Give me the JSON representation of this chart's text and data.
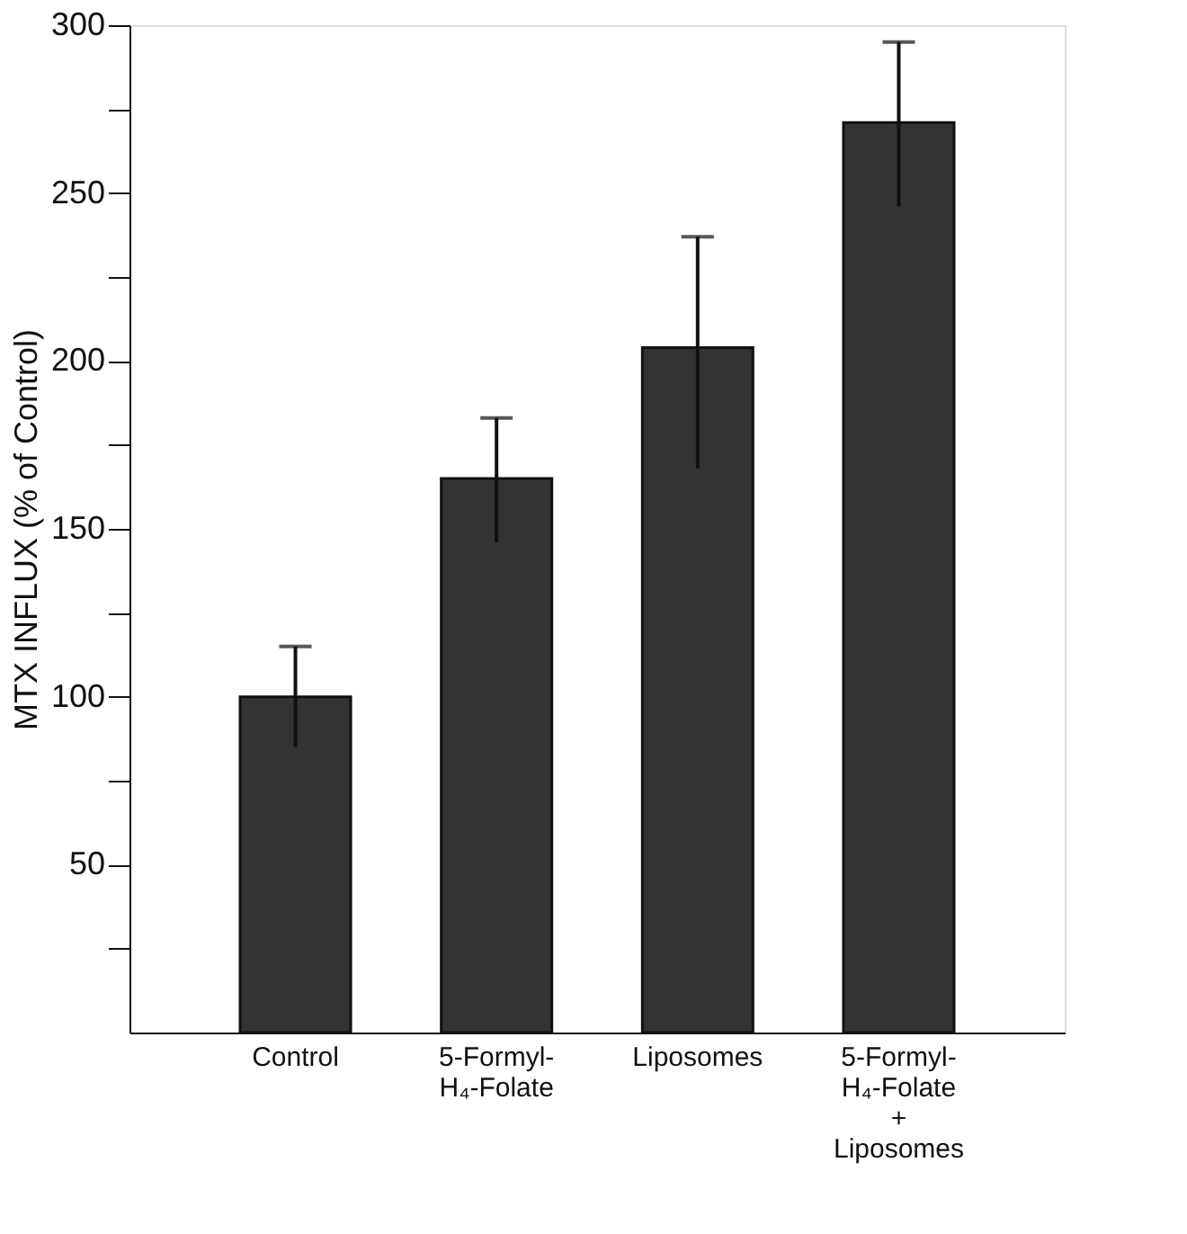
{
  "chart_data": {
    "type": "bar",
    "ylabel": "MTX INFLUX (% of Control)",
    "categories": [
      "Control",
      "5-Formyl-\nH₄-Folate",
      "Liposomes",
      "5-Formyl-\nH₄-Folate\n+\nLiposomes"
    ],
    "values": [
      100,
      165,
      204,
      271
    ],
    "errors": [
      [
        85,
        115
      ],
      [
        146,
        183
      ],
      [
        168,
        237
      ],
      [
        246,
        295
      ]
    ],
    "color": "#333333",
    "ylim": [
      0,
      300
    ],
    "yticks": [
      {
        "value": 25,
        "label": null
      },
      50,
      {
        "value": 75,
        "label": null
      },
      100,
      {
        "value": 125,
        "label": null
      },
      150,
      {
        "value": 175,
        "label": null
      },
      200,
      {
        "value": 225,
        "label": null
      },
      250,
      {
        "value": 275,
        "label": null
      },
      300
    ],
    "grid": false
  }
}
